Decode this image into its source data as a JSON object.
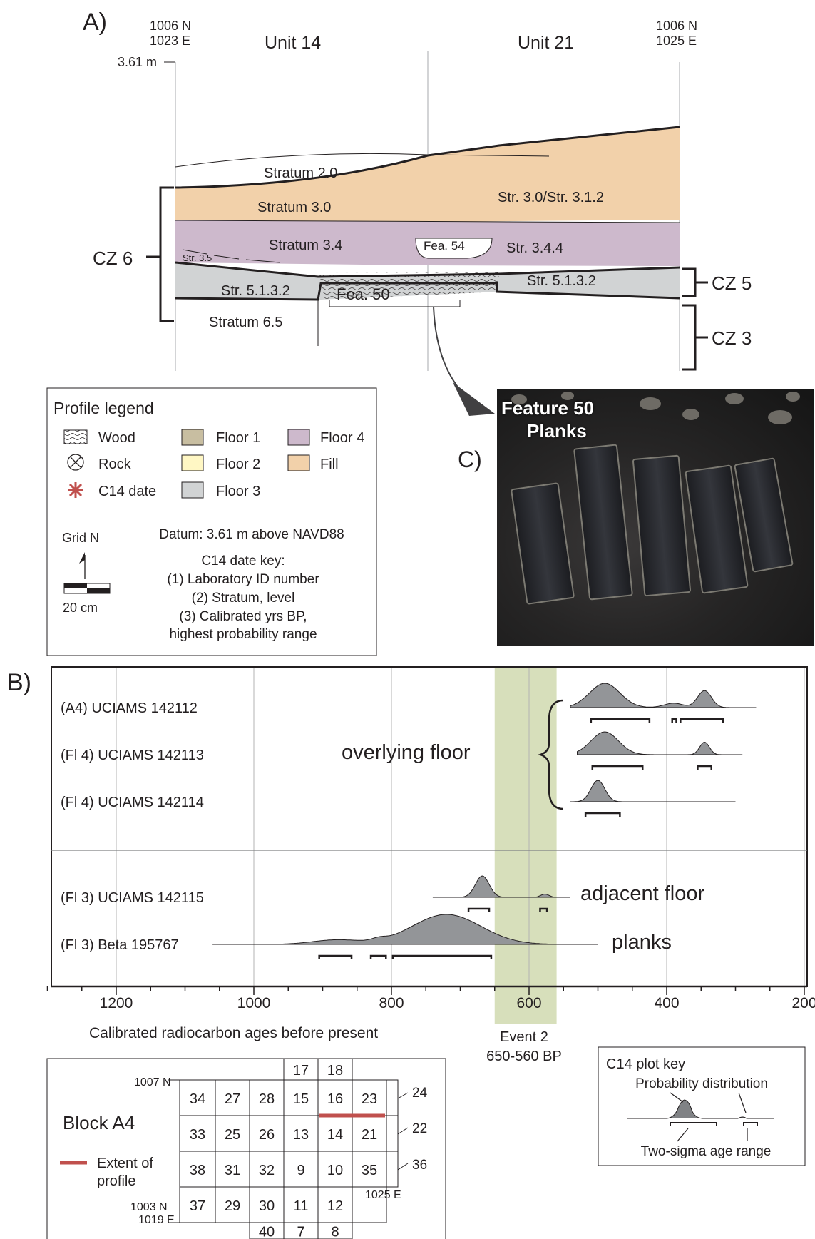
{
  "panel_a": {
    "label": "A)",
    "coord_left_n": "1006 N",
    "coord_left_e": "1023 E",
    "coord_right_n": "1006 N",
    "coord_right_e": "1025 E",
    "unit_left": "Unit 14",
    "unit_right": "Unit 21",
    "datum_elev": "3.61 m",
    "strata": {
      "s2": "Stratum 2.0",
      "s3": "Stratum 3.0",
      "s3_31": "Str. 3.0/Str. 3.1.2",
      "s34": "Stratum 3.4",
      "fea54": "Fea. 54",
      "s344": "Str. 3.4.4",
      "s35": "Str. 3.5",
      "s5132_left": "Str. 5.1.3.2",
      "s5132_right": "Str. 5.1.3.2",
      "fea50": "Fea. 50",
      "s65": "Stratum 6.5"
    },
    "zones": {
      "cz6": "CZ 6",
      "cz5": "CZ 5",
      "cz3": "CZ 3"
    },
    "colors": {
      "fill": "#f2d1aa",
      "floor4": "#cdb9cc",
      "floor3": "#d1d3d4",
      "floor1": "#c8bea1",
      "floor2": "#fff7c4",
      "c14": "#c0504d"
    }
  },
  "legend": {
    "title": "Profile legend",
    "items": {
      "wood": "Wood",
      "rock": "Rock",
      "c14": "C14 date",
      "floor1": "Floor 1",
      "floor2": "Floor 2",
      "floor3": "Floor 3",
      "floor4": "Floor 4",
      "fill": "Fill"
    },
    "grid_n": "Grid N",
    "scale": "20 cm",
    "datum": "Datum: 3.61 m above NAVD88",
    "key_title": "C14 date key:",
    "key_1": "(1) Laboratory ID number",
    "key_2": "(2) Stratum, level",
    "key_3": "(3) Calibrated yrs BP,",
    "key_3b": "highest probability range"
  },
  "panel_c": {
    "label": "C)",
    "photo_line1": "Feature 50",
    "photo_line2": "Planks"
  },
  "panel_b": {
    "label": "B)",
    "x_label": "Calibrated radiocarbon ages before present",
    "event_line1": "Event 2",
    "event_line2": "650-560 BP",
    "annotations": {
      "overlying": "overlying floor",
      "adjacent": "adjacent floor",
      "planks": "planks"
    },
    "event_color": "#d7dfbb"
  },
  "chart_data": {
    "type": "area",
    "x_axis": {
      "ticks": [
        "1200",
        "1000",
        "800",
        "600",
        "400",
        "200"
      ],
      "xlim": [
        1300,
        200
      ],
      "reversed": true
    },
    "event_range": [
      650,
      560
    ],
    "samples": [
      {
        "label": "(A4) UCIAMS 142112",
        "range": [
          540,
          270
        ],
        "peaks": [
          [
            490,
            1.0,
            22
          ],
          [
            345,
            0.7,
            10
          ],
          [
            390,
            0.18,
            14
          ]
        ],
        "two_sigma": [
          [
            510,
            425
          ],
          [
            392,
            386
          ],
          [
            380,
            318
          ]
        ]
      },
      {
        "label": "(Fl 4) UCIAMS 142113",
        "range": [
          530,
          290
        ],
        "peaks": [
          [
            490,
            1.0,
            20
          ],
          [
            345,
            0.55,
            7
          ]
        ],
        "two_sigma": [
          [
            508,
            435
          ],
          [
            355,
            335
          ]
        ]
      },
      {
        "label": "(Fl 4) UCIAMS 142114",
        "range": [
          540,
          300
        ],
        "peaks": [
          [
            500,
            1.0,
            10
          ]
        ],
        "two_sigma": [
          [
            518,
            468
          ]
        ]
      },
      {
        "label": "(Fl 3) UCIAMS 142115",
        "range": [
          740,
          540
        ],
        "peaks": [
          [
            668,
            1.0,
            10
          ],
          [
            577,
            0.15,
            6
          ]
        ],
        "two_sigma": [
          [
            688,
            658
          ],
          [
            584,
            574
          ]
        ]
      },
      {
        "label": "(Fl 3) Beta 195767",
        "range": [
          1060,
          500
        ],
        "peaks": [
          [
            720,
            1.0,
            50
          ],
          [
            880,
            0.15,
            35
          ],
          [
            818,
            0.08,
            10
          ]
        ],
        "two_sigma": [
          [
            905,
            858
          ],
          [
            830,
            808
          ],
          [
            798,
            655
          ]
        ]
      }
    ]
  },
  "plot_key": {
    "title": "C14 plot key",
    "prob": "Probability distribution",
    "range": "Two-sigma age range"
  },
  "block": {
    "title": "Block A4",
    "extent_line1": "Extent of",
    "extent_line2": "profile",
    "coord_1007n": "1007 N",
    "coord_1003n": "1003 N",
    "coord_1019e": "1019 E",
    "coord_1025e": "1025 E",
    "row0": [
      "17",
      "18"
    ],
    "row1": [
      "34",
      "27",
      "28",
      "15",
      "16",
      "23"
    ],
    "row2": [
      "33",
      "25",
      "26",
      "13",
      "14",
      "21"
    ],
    "row3": [
      "38",
      "31",
      "32",
      "9",
      "10",
      "35"
    ],
    "row4": [
      "37",
      "29",
      "30",
      "11",
      "12"
    ],
    "row5": [
      "40",
      "7",
      "8"
    ],
    "side_24": "24",
    "side_22": "22",
    "side_36": "36"
  }
}
